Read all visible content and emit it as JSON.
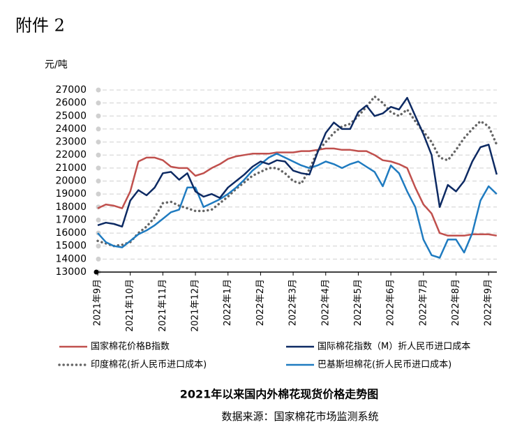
{
  "chart_data": {
    "type": "line",
    "header": "附件 2",
    "y_axis_label": "元/吨",
    "title": "2021年以来国内外棉花现货价格走势图",
    "source": "数据来源：国家棉花市场监测系统",
    "categories": [
      "2021年9月",
      null,
      null,
      null,
      "2021年10月",
      null,
      null,
      null,
      "2021年11月",
      null,
      null,
      null,
      "2021年12月",
      null,
      null,
      null,
      "2022年1月",
      null,
      null,
      null,
      "2022年2月",
      null,
      null,
      null,
      "2022年3月",
      null,
      null,
      null,
      "2022年4月",
      null,
      null,
      null,
      "2022年5月",
      null,
      null,
      null,
      "2022年6月",
      null,
      null,
      null,
      "2022年7月",
      null,
      null,
      null,
      "2022年8月",
      null,
      null,
      null,
      "2022年9月",
      null
    ],
    "ylim": [
      13000,
      27000
    ],
    "yticks": [
      13000,
      14000,
      15000,
      16000,
      17000,
      18000,
      19000,
      20000,
      21000,
      22000,
      23000,
      24000,
      25000,
      26000,
      27000
    ],
    "grid": true,
    "series": [
      {
        "name": "国家棉花价格B指数",
        "color": "#c0504d",
        "line_style": "solid",
        "values": [
          17900,
          18200,
          18100,
          17900,
          19200,
          21500,
          21800,
          21800,
          21600,
          21100,
          21000,
          21000,
          20400,
          20600,
          21000,
          21300,
          21700,
          21900,
          22000,
          22100,
          22100,
          22100,
          22200,
          22200,
          22200,
          22300,
          22300,
          22400,
          22500,
          22500,
          22400,
          22400,
          22300,
          22300,
          22000,
          21600,
          21500,
          21300,
          21000,
          19500,
          18200,
          17500,
          16000,
          15800,
          15800,
          15800,
          15900,
          15900,
          15900,
          15800
        ]
      },
      {
        "name": "国际棉花指数（M）折人民币进口成本",
        "color": "#0d2a63",
        "line_style": "solid",
        "values": [
          16600,
          16800,
          16700,
          16500,
          18500,
          19300,
          18900,
          19500,
          20600,
          20700,
          20100,
          20600,
          19200,
          18800,
          19000,
          18700,
          19500,
          20000,
          20500,
          21100,
          21500,
          21300,
          21600,
          21500,
          20800,
          20600,
          20500,
          22200,
          23700,
          24500,
          24000,
          24000,
          25300,
          25800,
          25000,
          25200,
          25700,
          25500,
          26400,
          25000,
          23600,
          22000,
          18000,
          19700,
          19200,
          20000,
          21500,
          22600,
          22800,
          20500
        ]
      },
      {
        "name": "印度棉花(折人民币进口成本)",
        "color": "#666666",
        "line_style": "dotted",
        "values": [
          15400,
          15200,
          15000,
          15100,
          15300,
          16000,
          16500,
          17200,
          18300,
          18400,
          18100,
          17900,
          17700,
          17700,
          17800,
          18300,
          18800,
          19400,
          19900,
          20400,
          20700,
          21000,
          21000,
          20600,
          20000,
          19800,
          20900,
          22300,
          23000,
          23700,
          24200,
          24400,
          25000,
          25700,
          26500,
          26000,
          25300,
          25000,
          25500,
          24600,
          23800,
          23000,
          21800,
          21600,
          22400,
          23300,
          24000,
          24600,
          24200,
          22800
        ]
      },
      {
        "name": "巴基斯坦棉花(折人民币进口成本)",
        "color": "#1f7bc0",
        "line_style": "solid",
        "values": [
          16000,
          15300,
          15000,
          14900,
          15400,
          15900,
          16200,
          16600,
          17100,
          17600,
          17800,
          19500,
          19500,
          18000,
          18300,
          18600,
          19000,
          19500,
          20100,
          20800,
          21300,
          21800,
          22100,
          21800,
          21500,
          21200,
          21000,
          21200,
          21500,
          21300,
          21000,
          21300,
          21500,
          21100,
          20700,
          19600,
          21200,
          20600,
          19200,
          18000,
          15500,
          14300,
          14100,
          15500,
          15500,
          14500,
          16000,
          18500,
          19600,
          19000
        ]
      }
    ]
  }
}
